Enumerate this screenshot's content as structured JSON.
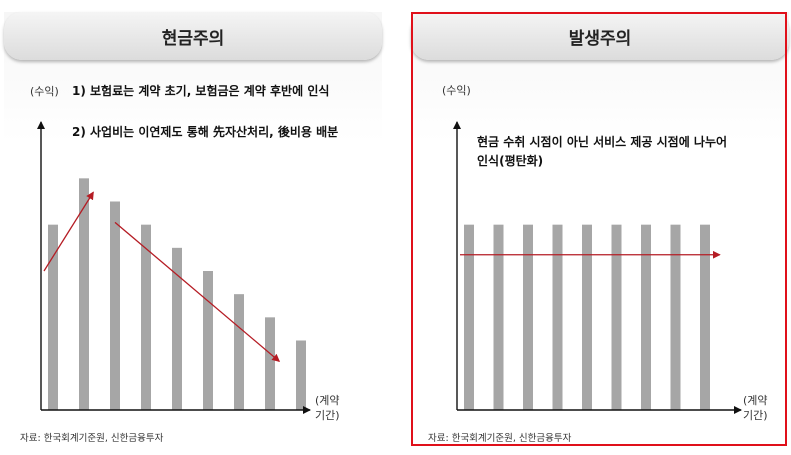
{
  "left_panel": {
    "title": "현금주의",
    "notes": [
      "1) 보험료는 계약 초기, 보험금은 계약 후반에 인식",
      "2) 사업비는 이연제도 통해 先자산처리, 後비용 배분"
    ],
    "source": "자료: 한국회계기준원, 신한금융투자"
  },
  "right_panel": {
    "title": "발생주의",
    "note_line1": "현금 수취 시점이 아닌 서비스 제공 시점에 나누어",
    "note_line2": "인식(평탄화)",
    "source": "자료: 한국회계기준원, 신한금융투자"
  },
  "colors": {
    "bar": "#a6a6a6",
    "arrow": "#b51c24",
    "axis": "#111111",
    "highlight_border": "#e0101a"
  },
  "chart_data": [
    {
      "type": "bar",
      "title": "현금주의",
      "ylabel": "(수익)",
      "xlabel": "(계약\n기간)",
      "grid": false,
      "values": [
        8,
        10,
        9,
        8,
        7,
        6,
        5,
        4,
        3
      ],
      "ylim": [
        0,
        12
      ],
      "arrows": [
        {
          "from_x": 0,
          "from_y": 6,
          "to_x": 1.3,
          "to_y": 9.4
        },
        {
          "from_x": 2,
          "from_y": 8.1,
          "to_x": 7.3,
          "to_y": 2.1
        }
      ]
    },
    {
      "type": "bar",
      "title": "발생주의",
      "ylabel": "(수익)",
      "xlabel": "(계약\n기간)",
      "grid": false,
      "values": [
        8,
        8,
        8,
        8,
        8,
        8,
        8,
        8,
        8
      ],
      "ylim": [
        0,
        12
      ],
      "arrows": [
        {
          "from_x": 0,
          "from_y": 6.7,
          "to_x": 8.5,
          "to_y": 6.7
        }
      ]
    }
  ]
}
